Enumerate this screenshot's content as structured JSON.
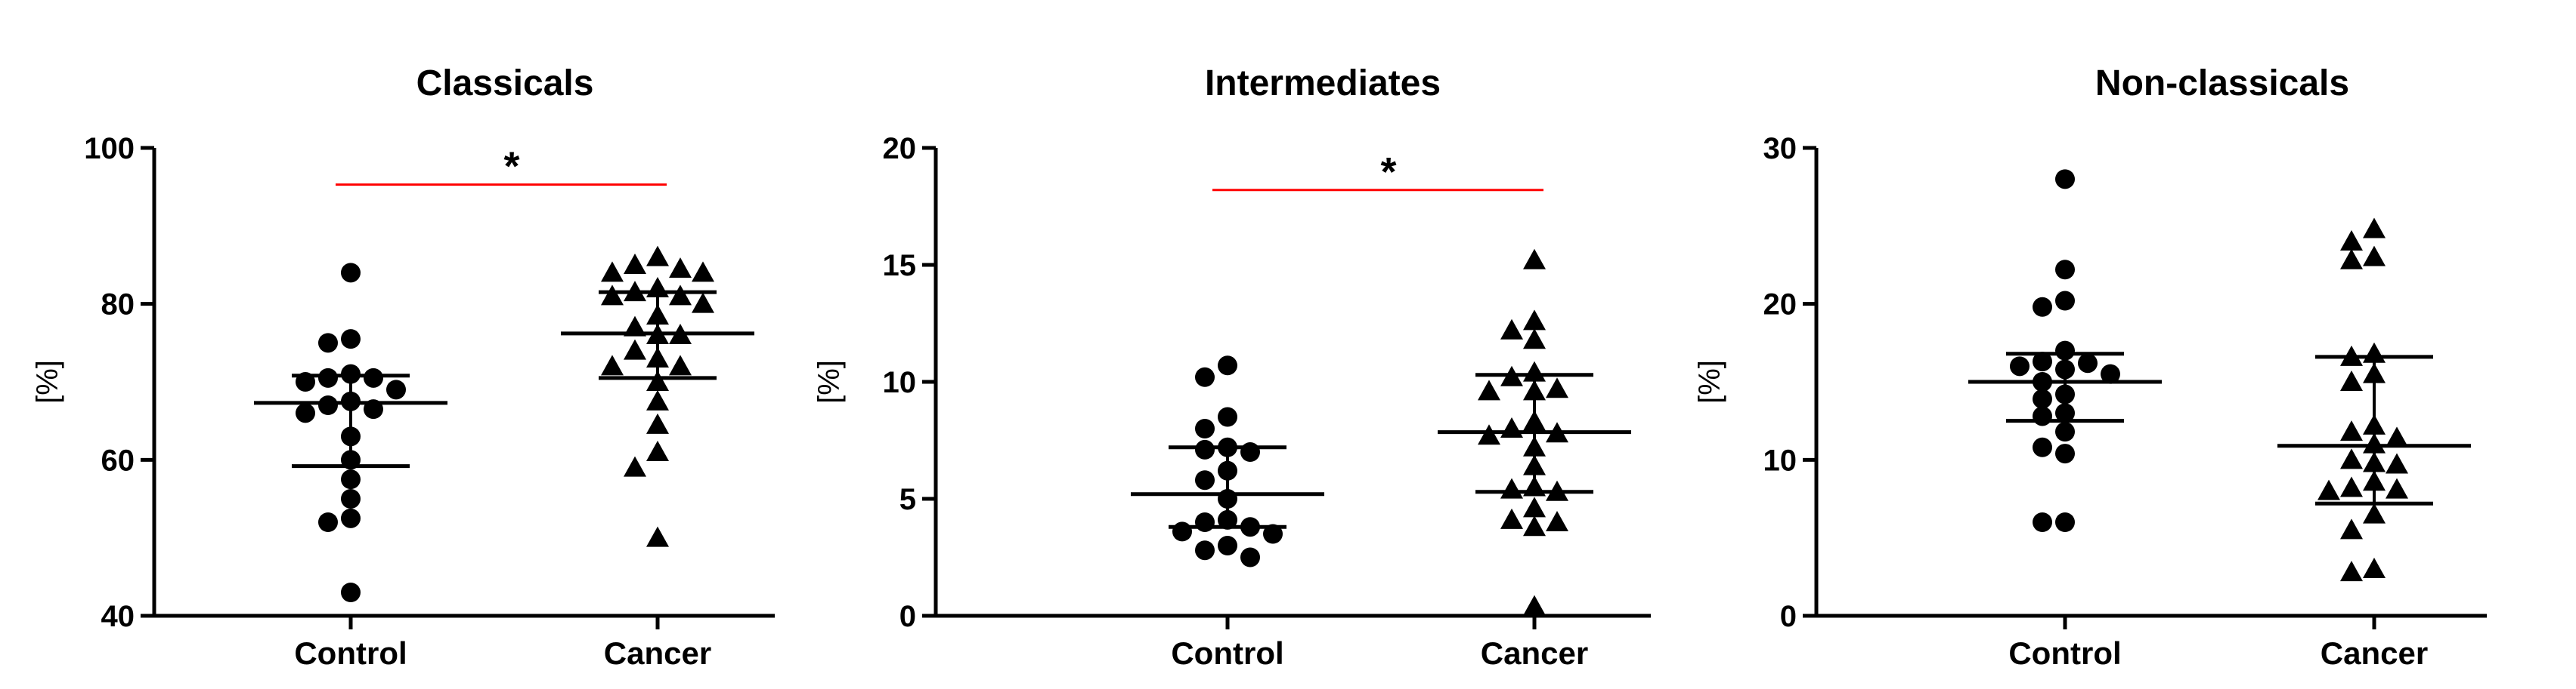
{
  "chart_data": [
    {
      "type": "scatter",
      "title": "Classicals",
      "ylabel": "[%]",
      "ylim": [
        40,
        100
      ],
      "yticks": [
        "40",
        "60",
        "80",
        "100"
      ],
      "categories": [
        "Control",
        "Cancer"
      ],
      "significance": {
        "label": "*",
        "between": [
          "Control",
          "Cancer"
        ],
        "y": 95.3,
        "color": "#ff0000"
      },
      "series": [
        {
          "name": "Control",
          "marker": "circle",
          "values": [
            84,
            75.5,
            75,
            71,
            70.5,
            70.5,
            70,
            69,
            67.5,
            67,
            66.5,
            66,
            63,
            60,
            57.5,
            55,
            52.5,
            52,
            43
          ],
          "mean": 67.3,
          "sd_low": 59.2,
          "sd_high": 70.8
        },
        {
          "name": "Cancer",
          "marker": "triangle",
          "values": [
            86,
            85,
            84.5,
            84,
            84,
            82,
            81.5,
            81,
            81,
            80,
            78.5,
            77,
            76,
            76,
            74,
            73,
            72,
            72,
            70,
            67.5,
            64.5,
            61,
            59,
            50
          ],
          "mean": 76.2,
          "sd_low": 70.5,
          "sd_high": 81.5
        }
      ]
    },
    {
      "type": "scatter",
      "title": "Intermediates",
      "ylabel": "[%]",
      "ylim": [
        0,
        20
      ],
      "yticks": [
        "0",
        "5",
        "10",
        "15",
        "20"
      ],
      "categories": [
        "Control",
        "Cancer"
      ],
      "significance": {
        "label": "*",
        "between": [
          "Control",
          "Cancer"
        ],
        "y": 18.2,
        "color": "#ff0000"
      },
      "series": [
        {
          "name": "Control",
          "marker": "circle",
          "values": [
            10.7,
            10.2,
            8.5,
            8.0,
            7.2,
            7.1,
            7.0,
            6.2,
            5.8,
            5.0,
            4.1,
            4.0,
            3.8,
            3.6,
            3.5,
            3.0,
            2.8,
            2.5
          ],
          "mean": 5.2,
          "sd_low": 3.8,
          "sd_high": 7.2
        },
        {
          "name": "Cancer",
          "marker": "triangle",
          "values": [
            15.2,
            12.6,
            12.2,
            11.8,
            10.4,
            10.2,
            9.7,
            9.6,
            9.6,
            8.3,
            8.0,
            7.8,
            7.7,
            7.2,
            6.4,
            5.5,
            5.4,
            5.3,
            4.6,
            4.1,
            4.0,
            3.8,
            0.4
          ],
          "mean": 7.85,
          "sd_low": 5.3,
          "sd_high": 10.3
        }
      ]
    },
    {
      "type": "scatter",
      "title": "Non-classicals",
      "ylabel": "[%]",
      "ylim": [
        0,
        30
      ],
      "yticks": [
        "0",
        "10",
        "20",
        "30"
      ],
      "categories": [
        "Control",
        "Cancer"
      ],
      "significance": null,
      "series": [
        {
          "name": "Control",
          "marker": "circle",
          "values": [
            28,
            22.2,
            20.2,
            19.8,
            17,
            16.3,
            16.2,
            16,
            15.8,
            15.5,
            15,
            14.2,
            13.9,
            13,
            12.8,
            11.8,
            10.8,
            10.4,
            6,
            6
          ],
          "mean": 15.0,
          "sd_low": 12.5,
          "sd_high": 16.8
        },
        {
          "name": "Cancer",
          "marker": "triangle",
          "values": [
            24.8,
            24,
            23,
            22.8,
            16.8,
            16.6,
            15.5,
            15,
            12.2,
            11.8,
            11.4,
            11,
            10,
            9.8,
            9.7,
            8.6,
            8.2,
            8.1,
            8.0,
            6.5,
            5.5,
            3.0,
            2.8
          ],
          "mean": 10.9,
          "sd_low": 7.2,
          "sd_high": 16.6
        }
      ]
    }
  ]
}
